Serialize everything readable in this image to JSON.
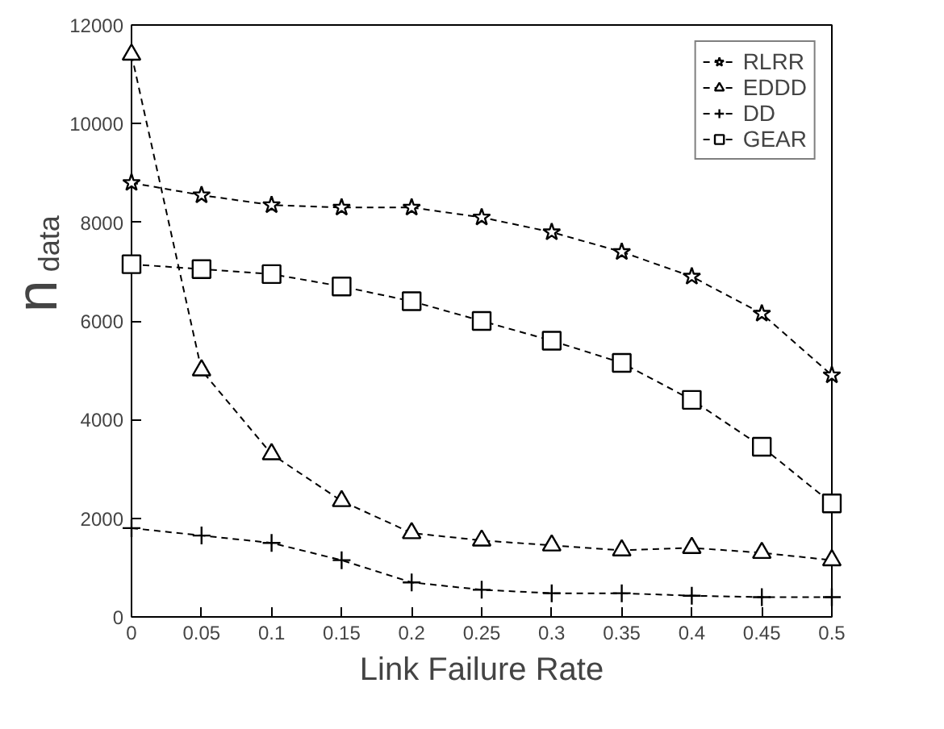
{
  "chart_data": {
    "type": "line",
    "xlabel": "Link Failure Rate",
    "ylabel": "n$_{data}$",
    "x": [
      0,
      0.05,
      0.1,
      0.15,
      0.2,
      0.25,
      0.3,
      0.35,
      0.4,
      0.45,
      0.5
    ],
    "xlim": [
      0,
      0.5
    ],
    "xticks": [
      0,
      0.05,
      0.1,
      0.15,
      0.2,
      0.25,
      0.3,
      0.35,
      0.4,
      0.45,
      0.5
    ],
    "ylim": [
      0,
      12000
    ],
    "yticks": [
      0,
      2000,
      4000,
      6000,
      8000,
      10000,
      12000
    ],
    "grid": false,
    "legend": "top right",
    "line_style": "dashed",
    "series": [
      {
        "name": "RLRR",
        "color": "#000000",
        "marker": "star",
        "values": [
          8800,
          8550,
          8350,
          8300,
          8300,
          8100,
          7800,
          7400,
          6900,
          6150,
          4900
        ]
      },
      {
        "name": "EDDD",
        "color": "#000000",
        "marker": "triangle",
        "values": [
          11400,
          5000,
          3300,
          2350,
          1700,
          1550,
          1450,
          1350,
          1400,
          1300,
          1150
        ]
      },
      {
        "name": "DD",
        "color": "#000000",
        "marker": "cross",
        "values": [
          1800,
          1650,
          1500,
          1150,
          700,
          550,
          480,
          480,
          430,
          400,
          400
        ]
      },
      {
        "name": "GEAR",
        "color": "#000000",
        "marker": "square",
        "values": [
          7150,
          7050,
          6950,
          6700,
          6400,
          6000,
          5600,
          5150,
          4400,
          3450,
          2300
        ]
      }
    ]
  }
}
